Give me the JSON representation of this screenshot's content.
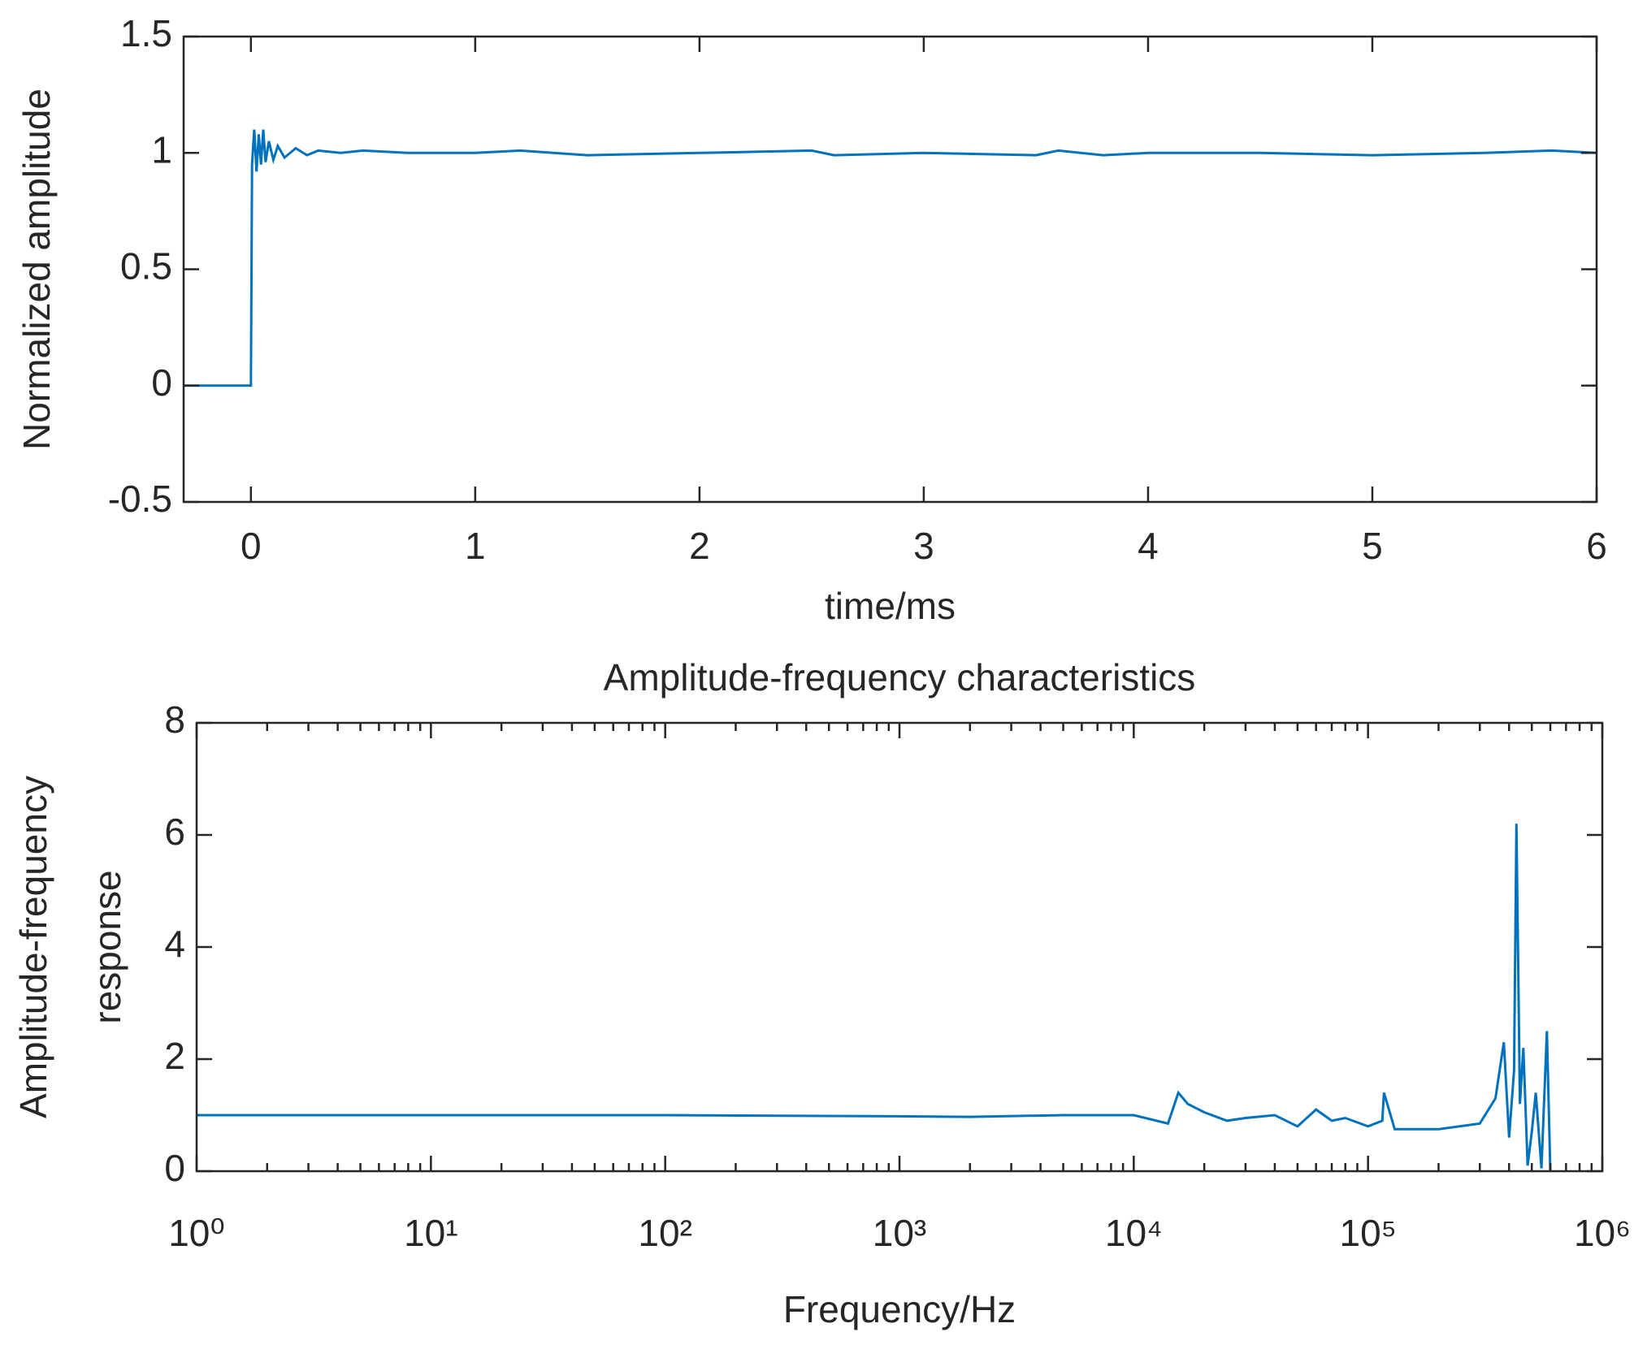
{
  "chart_data": [
    {
      "type": "line",
      "xlabel": "time/ms",
      "ylabel": [
        "Normalized amplitude"
      ],
      "color": "#0072bd",
      "x": [
        -0.3,
        -0.01,
        0,
        0.005,
        0.015,
        0.025,
        0.035,
        0.045,
        0.055,
        0.065,
        0.08,
        0.1,
        0.12,
        0.15,
        0.2,
        0.25,
        0.3,
        0.4,
        0.5,
        0.7,
        1,
        1.2,
        1.5,
        2,
        2.5,
        2.6,
        3,
        3.5,
        3.6,
        3.8,
        4,
        4.5,
        5,
        5.5,
        5.8,
        6
      ],
      "values": [
        0,
        0,
        0,
        0.95,
        1.1,
        0.92,
        1.08,
        0.95,
        1.1,
        0.96,
        1.05,
        0.97,
        1.03,
        0.98,
        1.02,
        0.99,
        1.01,
        1.0,
        1.01,
        1.0,
        1.0,
        1.01,
        0.99,
        1.0,
        1.01,
        0.99,
        1.0,
        0.99,
        1.01,
        0.99,
        1.0,
        1.0,
        0.99,
        1.0,
        1.01,
        1.0
      ],
      "xlim": [
        -0.3,
        6
      ],
      "xticks": [
        0,
        1,
        2,
        3,
        4,
        5,
        6
      ],
      "ylim": [
        -0.5,
        1.5
      ],
      "yticks": [
        -0.5,
        0,
        0.5,
        1,
        1.5
      ]
    },
    {
      "type": "line",
      "title": "Amplitude-frequency characteristics",
      "xlabel": "Frequency/Hz",
      "ylabel": [
        "Amplitude-frequency",
        "response"
      ],
      "color": "#0072bd",
      "xscale": "log",
      "x": [
        1,
        10,
        100,
        1000,
        2000,
        5000,
        10000,
        14000,
        15500,
        17000,
        20000,
        25000,
        30000,
        40000,
        50000,
        60000,
        70000,
        80000,
        100000,
        115000,
        117000,
        130000,
        200000,
        300000,
        350000,
        380000,
        400000,
        420000,
        430000,
        445000,
        460000,
        480000,
        500000,
        520000,
        550000,
        580000,
        600000
      ],
      "values": [
        1,
        1,
        1,
        0.98,
        0.97,
        1.0,
        1.0,
        0.85,
        1.4,
        1.2,
        1.05,
        0.9,
        0.95,
        1.0,
        0.8,
        1.1,
        0.9,
        0.95,
        0.8,
        0.9,
        1.4,
        0.75,
        0.75,
        0.85,
        1.3,
        2.3,
        0.6,
        1.8,
        6.2,
        1.2,
        2.2,
        0.1,
        0.7,
        1.4,
        0.05,
        2.5,
        0
      ],
      "xlim": [
        1,
        1000000
      ],
      "xticks": [
        {
          "value": 1,
          "label": "10⁰"
        },
        {
          "value": 10,
          "label": "10¹"
        },
        {
          "value": 100,
          "label": "10²"
        },
        {
          "value": 1000,
          "label": "10³"
        },
        {
          "value": 10000,
          "label": "10⁴"
        },
        {
          "value": 100000,
          "label": "10⁵"
        },
        {
          "value": 1000000,
          "label": "10⁶"
        }
      ],
      "ylim": [
        0,
        8
      ],
      "yticks": [
        0,
        2,
        4,
        6,
        8
      ]
    }
  ]
}
